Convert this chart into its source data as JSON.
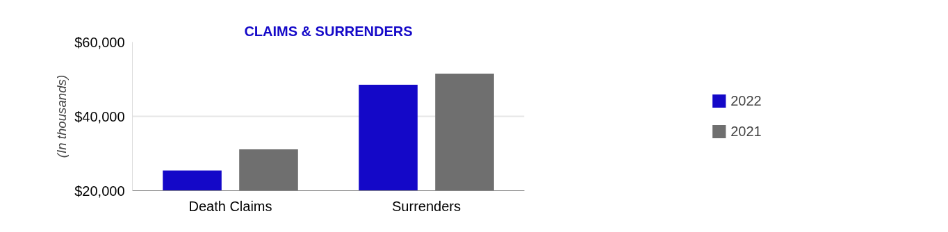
{
  "chart_data": {
    "type": "bar",
    "title": "CLAIMS & SURRENDERS",
    "ylabel": "(In thousands)",
    "categories": [
      "Death Claims",
      "Surrenders"
    ],
    "series": [
      {
        "name": "2022",
        "color": "#1408c8",
        "values": [
          25400,
          48500
        ]
      },
      {
        "name": "2021",
        "color": "#6f6f6f",
        "values": [
          31100,
          51500
        ]
      }
    ],
    "ylim": [
      20000,
      60000
    ],
    "yticks": [
      {
        "value": 20000,
        "label": "$20,000"
      },
      {
        "value": 40000,
        "label": "$40,000"
      },
      {
        "value": 60000,
        "label": "$60,000"
      }
    ],
    "grid": "y",
    "legend": "right"
  }
}
